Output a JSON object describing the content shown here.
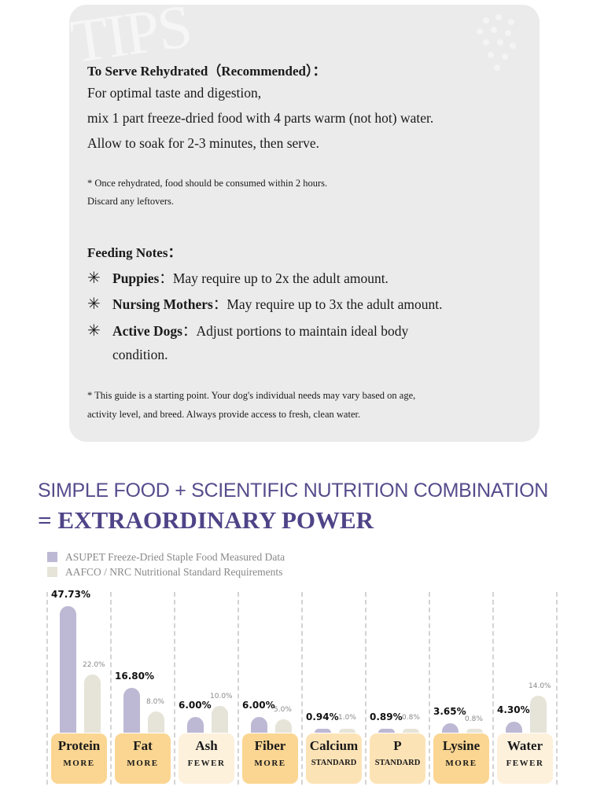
{
  "tips": {
    "watermark": "TIPS",
    "rehydrate_heading": "To Serve Rehydrated（Recommended）：",
    "rehydrate_lines": [
      "For optimal taste and digestion,",
      "mix 1 part freeze-dried food with 4 parts warm (not hot) water.",
      "Allow to soak for 2-3 minutes, then serve."
    ],
    "rehydrate_note_lines": [
      "* Once rehydrated, food should be consumed within 2 hours.",
      "Discard any leftovers."
    ],
    "feeding_heading": "Feeding Notes：",
    "feeding_notes": [
      {
        "label": "Puppies",
        "sep": "：",
        "text": "May require up to 2x the adult amount."
      },
      {
        "label": "Nursing Mothers",
        "sep": "：",
        "text": "May require up to 3x the adult amount."
      },
      {
        "label": "Active Dogs",
        "sep": "：",
        "text": "Adjust portions to maintain ideal body"
      }
    ],
    "feeding_note_continuation": "condition.",
    "guide_note_lines": [
      "* This guide is a starting point. Your dog's individual needs may vary based on age,",
      "activity level, and breed. Always provide access to fresh, clean water."
    ]
  },
  "headline": {
    "line1": "SIMPLE FOOD + SCIENTIFIC NUTRITION COMBINATION",
    "line2": "= EXTRAORDINARY POWER"
  },
  "colors": {
    "measured": "#bdb9d4",
    "standard": "#e6e3d8",
    "more": "#fbd692",
    "standard_tag": "#fce3b6",
    "fewer": "#fdf1dc",
    "heading": "#544a8a"
  },
  "chart_data": {
    "type": "bar",
    "legend": [
      "ASUPET Freeze-Dried Staple Food Measured Data",
      "AAFCO / NRC Nutritional Standard Requirements"
    ],
    "legend_placement": "top-left",
    "categories": [
      "Protein",
      "Fat",
      "Ash",
      "Fiber",
      "Calcium",
      "P",
      "Lysine",
      "Water"
    ],
    "tags": [
      "MORE",
      "MORE",
      "FEWER",
      "MORE",
      "STANDARD",
      "STANDARD",
      "MORE",
      "FEWER"
    ],
    "series": [
      {
        "name": "ASUPET Freeze-Dried Staple Food Measured Data",
        "values": [
          47.73,
          16.8,
          6.0,
          6.0,
          0.94,
          0.89,
          3.65,
          4.3
        ],
        "labels": [
          "47.73%",
          "16.80%",
          "6.00%",
          "6.00%",
          "0.94%",
          "0.89%",
          "3.65%",
          "4.30%"
        ]
      },
      {
        "name": "AAFCO / NRC Nutritional Standard Requirements",
        "values": [
          22.0,
          8.0,
          10.0,
          5.0,
          1.0,
          0.8,
          0.8,
          14.0
        ],
        "labels": [
          "22.0%",
          "8.0%",
          "10.0%",
          "5.0%",
          "1.0%",
          "0.8%",
          "0.8%",
          "14.0%"
        ]
      }
    ],
    "ylim": [
      0,
      50
    ]
  }
}
